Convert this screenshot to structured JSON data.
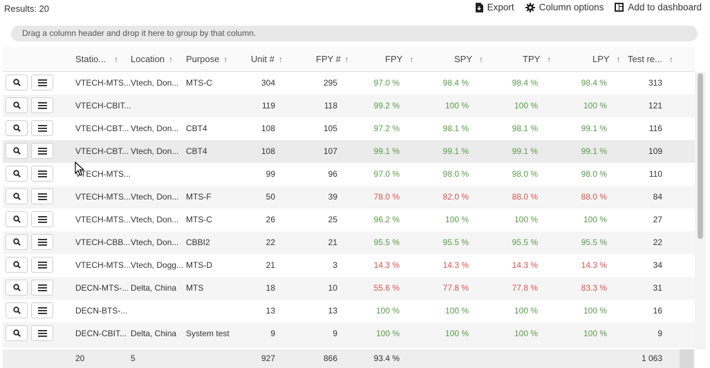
{
  "results_label": "Results: 20",
  "toolbar": {
    "export_label": "Export",
    "column_options_label": "Column options",
    "add_dashboard_label": "Add to dashboard"
  },
  "group_hint": "Drag a column header and drop it here to group by that column.",
  "columns": [
    {
      "label": "Statio...",
      "arrow": "↑"
    },
    {
      "label": "Location",
      "arrow": "↑"
    },
    {
      "label": "Purpose",
      "arrow": "↑"
    },
    {
      "label": "Unit #",
      "arrow": "↑"
    },
    {
      "label": "FPY #",
      "arrow": "↑"
    },
    {
      "label": "FPY",
      "arrow": "↑"
    },
    {
      "label": "SPY",
      "arrow": "↑"
    },
    {
      "label": "TPY",
      "arrow": "↑"
    },
    {
      "label": "LPY",
      "arrow": "↑"
    },
    {
      "label": "Test re...",
      "arrow": "↑"
    }
  ],
  "rows": [
    {
      "station": "VTECH-MTS...",
      "location": "Vtech, Don...",
      "purpose": "MTS-C",
      "unit": "304",
      "fpy_count": "295",
      "fpy": "97.0 %",
      "spy": "98.4 %",
      "tpy": "98.4 %",
      "lpy": "98.4 %",
      "tests": "313",
      "status": [
        "good",
        "good",
        "good",
        "good"
      ]
    },
    {
      "station": "VTECH-CBIT...",
      "location": "",
      "purpose": "",
      "unit": "119",
      "fpy_count": "118",
      "fpy": "99.2 %",
      "spy": "100 %",
      "tpy": "100 %",
      "lpy": "100 %",
      "tests": "121",
      "status": [
        "good",
        "good",
        "good",
        "good"
      ]
    },
    {
      "station": "VTECH-CBT...",
      "location": "Vtech, Don...",
      "purpose": "CBT4",
      "unit": "108",
      "fpy_count": "105",
      "fpy": "97.2 %",
      "spy": "98.1 %",
      "tpy": "98.1 %",
      "lpy": "99.1 %",
      "tests": "116",
      "status": [
        "good",
        "good",
        "good",
        "good"
      ]
    },
    {
      "station": "VTECH-CBT...",
      "location": "Vtech, Don...",
      "purpose": "CBT4",
      "unit": "108",
      "fpy_count": "107",
      "fpy": "99.1 %",
      "spy": "99.1 %",
      "tpy": "99.1 %",
      "lpy": "99.1 %",
      "tests": "109",
      "status": [
        "good",
        "good",
        "good",
        "good"
      ]
    },
    {
      "station": "VTECH-MTS...",
      "location": "",
      "purpose": "",
      "unit": "99",
      "fpy_count": "96",
      "fpy": "97.0 %",
      "spy": "98.0 %",
      "tpy": "98.0 %",
      "lpy": "98.0 %",
      "tests": "110",
      "status": [
        "good",
        "good",
        "good",
        "good"
      ]
    },
    {
      "station": "VTECH-MTS...",
      "location": "Vtech, Don...",
      "purpose": "MTS-F",
      "unit": "50",
      "fpy_count": "39",
      "fpy": "78.0 %",
      "spy": "82.0 %",
      "tpy": "88.0 %",
      "lpy": "88.0 %",
      "tests": "84",
      "status": [
        "bad",
        "bad",
        "bad",
        "bad"
      ]
    },
    {
      "station": "VTECH-MTS...",
      "location": "Vtech, Don...",
      "purpose": "MTS-C",
      "unit": "26",
      "fpy_count": "25",
      "fpy": "96.2 %",
      "spy": "100 %",
      "tpy": "100 %",
      "lpy": "100 %",
      "tests": "27",
      "status": [
        "good",
        "good",
        "good",
        "good"
      ]
    },
    {
      "station": "VTECH-CBB...",
      "location": "Vtech, Don...",
      "purpose": "CBBI2",
      "unit": "22",
      "fpy_count": "21",
      "fpy": "95.5 %",
      "spy": "95.5 %",
      "tpy": "95.5 %",
      "lpy": "95.5 %",
      "tests": "22",
      "status": [
        "good",
        "good",
        "good",
        "good"
      ]
    },
    {
      "station": "VTECH-MTS...",
      "location": "Vtech, Dogg...",
      "purpose": "MTS-D",
      "unit": "21",
      "fpy_count": "3",
      "fpy": "14.3 %",
      "spy": "14.3 %",
      "tpy": "14.3 %",
      "lpy": "14.3 %",
      "tests": "34",
      "status": [
        "bad",
        "bad",
        "bad",
        "bad"
      ]
    },
    {
      "station": "DECN-MTS-...",
      "location": "Delta, China",
      "purpose": "MTS",
      "unit": "18",
      "fpy_count": "10",
      "fpy": "55.6 %",
      "spy": "77.8 %",
      "tpy": "77.8 %",
      "lpy": "83.3 %",
      "tests": "31",
      "status": [
        "bad",
        "bad",
        "bad",
        "bad"
      ]
    },
    {
      "station": "DECN-BTS-...",
      "location": "",
      "purpose": "",
      "unit": "13",
      "fpy_count": "13",
      "fpy": "100 %",
      "spy": "100 %",
      "tpy": "100 %",
      "lpy": "100 %",
      "tests": "16",
      "status": [
        "good",
        "good",
        "good",
        "good"
      ]
    },
    {
      "station": "DECN-CBIT...",
      "location": "Delta, China",
      "purpose": "System test",
      "unit": "9",
      "fpy_count": "9",
      "fpy": "100 %",
      "spy": "100 %",
      "tpy": "100 %",
      "lpy": "100 %",
      "tests": "9",
      "status": [
        "good",
        "good",
        "good",
        "good"
      ]
    }
  ],
  "footer": {
    "station": "20",
    "location": "5",
    "unit": "927",
    "fpy_count": "866",
    "fpy": "93.4 %",
    "tests": "1 063"
  },
  "colors": {
    "good": "#5a9a4a",
    "bad": "#d9534f"
  },
  "icons": {
    "inspect": "search-icon",
    "menu": "hamburger-icon",
    "export": "file-download-icon",
    "column_options": "gear-icon",
    "dashboard": "dashboard-icon"
  }
}
